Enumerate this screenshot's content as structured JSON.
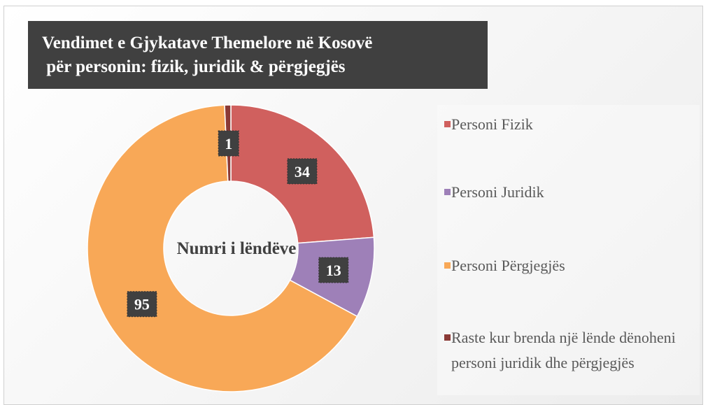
{
  "chart_data": {
    "type": "donut",
    "title": [
      "Vendimet e Gjykatave Themelore në Kosovë",
      " për personin: fizik, juridik & përgjegjës"
    ],
    "center_label": "Numri i lëndëve",
    "categories": [
      "Personi Fizik",
      "Personi Juridik",
      "Personi Përgjegjës",
      "Raste kur brenda një lënde dënoheni personi juridik dhe përgjegjës"
    ],
    "values": [
      34,
      13,
      95,
      1
    ],
    "colors": [
      "#d0605e",
      "#9e80b8",
      "#f8a857",
      "#8b3a36"
    ],
    "legend": "right"
  }
}
